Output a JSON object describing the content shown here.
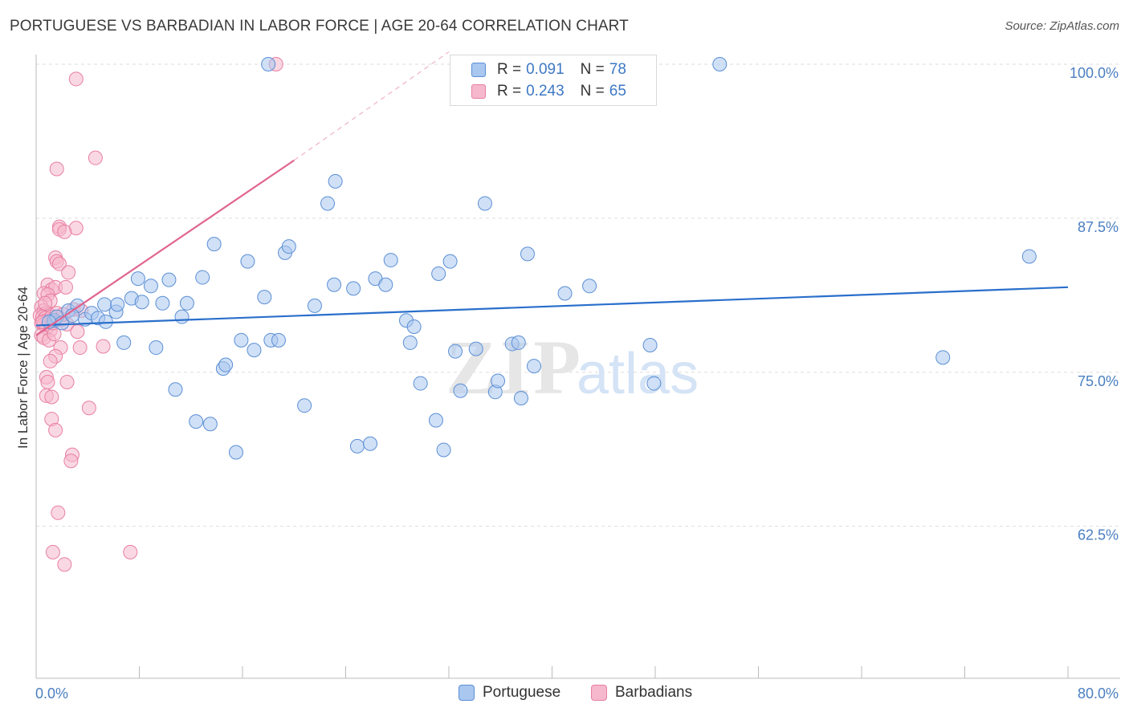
{
  "title": "PORTUGUESE VS BARBADIAN IN LABOR FORCE | AGE 20-64 CORRELATION CHART",
  "source": "Source: ZipAtlas.com",
  "watermark": {
    "zip": "ZIP",
    "atlas": "atlas"
  },
  "colors": {
    "blue_fill": "#a9c7ef",
    "blue_stroke": "#5b8fd6",
    "blue_line": "#2a6fcb",
    "pink_fill": "#f6b8cc",
    "pink_stroke": "#e87fa2",
    "pink_line": "#e0648f",
    "tick_text": "#4a7fc1",
    "grid": "#dddddd"
  },
  "legend": {
    "r_label": "R =",
    "n_label": "N =",
    "rows": [
      {
        "r": "0.091",
        "n": "78"
      },
      {
        "r": "0.243",
        "n": "65"
      }
    ]
  },
  "chart_data": {
    "type": "scatter",
    "title": "PORTUGUESE VS BARBADIAN IN LABOR FORCE | AGE 20-64 CORRELATION CHART",
    "xlabel": "",
    "ylabel": "In Labor Force | Age 20-64",
    "xlim": [
      0,
      80
    ],
    "ylim": [
      52.5,
      101.5
    ],
    "x_tick_labels": [
      {
        "value": 0,
        "label": "0.0%"
      },
      {
        "value": 80,
        "label": "80.0%"
      }
    ],
    "y_tick_labels": [
      {
        "value": 100,
        "label": "100.0%"
      },
      {
        "value": 87.5,
        "label": "87.5%"
      },
      {
        "value": 75,
        "label": "75.0%"
      },
      {
        "value": 62.5,
        "label": "62.5%"
      }
    ],
    "grid": "horizontal dashed",
    "legend_position": "top-center",
    "series": [
      {
        "name": "Portuguese",
        "color": "#5b8fd6",
        "trend": {
          "x": [
            0,
            80
          ],
          "y": [
            78.8,
            81.9
          ]
        },
        "points": [
          [
            1.4,
            79.2
          ],
          [
            1.6,
            79.5
          ],
          [
            2.0,
            79.0
          ],
          [
            2.5,
            80.0
          ],
          [
            3.2,
            80.4
          ],
          [
            3.8,
            79.3
          ],
          [
            4.3,
            79.8
          ],
          [
            4.8,
            79.4
          ],
          [
            5.4,
            79.1
          ],
          [
            5.3,
            80.5
          ],
          [
            6.2,
            79.9
          ],
          [
            6.3,
            80.5
          ],
          [
            6.8,
            77.4
          ],
          [
            7.4,
            81.0
          ],
          [
            7.9,
            82.6
          ],
          [
            8.2,
            80.7
          ],
          [
            8.9,
            82.0
          ],
          [
            9.3,
            77.0
          ],
          [
            9.8,
            80.6
          ],
          [
            10.3,
            82.5
          ],
          [
            10.8,
            73.6
          ],
          [
            11.3,
            79.5
          ],
          [
            11.7,
            80.6
          ],
          [
            12.4,
            71.0
          ],
          [
            12.9,
            82.7
          ],
          [
            13.5,
            70.8
          ],
          [
            13.8,
            85.4
          ],
          [
            14.5,
            75.3
          ],
          [
            14.7,
            75.6
          ],
          [
            15.5,
            68.5
          ],
          [
            15.9,
            77.6
          ],
          [
            16.4,
            84.0
          ],
          [
            16.9,
            76.8
          ],
          [
            17.7,
            81.1
          ],
          [
            18.2,
            77.6
          ],
          [
            18.8,
            77.6
          ],
          [
            19.3,
            84.7
          ],
          [
            19.6,
            85.2
          ],
          [
            20.8,
            72.3
          ],
          [
            21.6,
            80.4
          ],
          [
            22.6,
            88.7
          ],
          [
            23.2,
            90.5
          ],
          [
            23.1,
            82.1
          ],
          [
            24.6,
            81.8
          ],
          [
            24.9,
            69.0
          ],
          [
            25.9,
            69.2
          ],
          [
            26.3,
            82.6
          ],
          [
            27.1,
            82.1
          ],
          [
            27.5,
            84.1
          ],
          [
            28.7,
            79.2
          ],
          [
            29.0,
            77.4
          ],
          [
            29.3,
            78.7
          ],
          [
            29.8,
            74.1
          ],
          [
            31.0,
            71.1
          ],
          [
            31.2,
            83.0
          ],
          [
            31.6,
            68.7
          ],
          [
            32.1,
            84.0
          ],
          [
            32.5,
            76.7
          ],
          [
            32.9,
            73.5
          ],
          [
            34.1,
            76.9
          ],
          [
            34.8,
            88.7
          ],
          [
            35.6,
            73.4
          ],
          [
            35.8,
            74.3
          ],
          [
            36.9,
            77.3
          ],
          [
            37.4,
            77.4
          ],
          [
            37.6,
            72.9
          ],
          [
            38.1,
            84.6
          ],
          [
            38.6,
            75.5
          ],
          [
            41.0,
            81.4
          ],
          [
            42.9,
            82.0
          ],
          [
            47.6,
            77.2
          ],
          [
            47.9,
            74.1
          ],
          [
            53.0,
            100.0
          ],
          [
            70.3,
            76.2
          ],
          [
            77.0,
            84.4
          ],
          [
            18.0,
            100.0
          ],
          [
            1.0,
            79.1
          ],
          [
            2.8,
            79.6
          ]
        ]
      },
      {
        "name": "Barbadians",
        "color": "#e87fa2",
        "trend": {
          "x": [
            0,
            20
          ],
          "y": [
            78.0,
            92.2
          ]
        },
        "trend_dashed": {
          "x": [
            20,
            32
          ],
          "y": [
            92.2,
            101.0
          ]
        },
        "points": [
          [
            18.6,
            100.0
          ],
          [
            3.1,
            98.8
          ],
          [
            4.6,
            92.4
          ],
          [
            1.6,
            91.5
          ],
          [
            1.8,
            86.8
          ],
          [
            1.8,
            86.6
          ],
          [
            3.1,
            86.7
          ],
          [
            2.2,
            86.4
          ],
          [
            1.5,
            84.3
          ],
          [
            1.6,
            84.0
          ],
          [
            1.8,
            83.8
          ],
          [
            2.5,
            83.1
          ],
          [
            0.9,
            82.1
          ],
          [
            1.2,
            81.7
          ],
          [
            1.5,
            81.9
          ],
          [
            2.3,
            81.9
          ],
          [
            0.6,
            81.4
          ],
          [
            0.9,
            81.3
          ],
          [
            1.1,
            80.8
          ],
          [
            0.4,
            80.3
          ],
          [
            0.6,
            80.0
          ],
          [
            0.8,
            79.8
          ],
          [
            1.0,
            79.7
          ],
          [
            0.3,
            79.6
          ],
          [
            0.5,
            79.5
          ],
          [
            0.7,
            79.4
          ],
          [
            0.9,
            79.2
          ],
          [
            1.2,
            79.5
          ],
          [
            1.6,
            79.8
          ],
          [
            2.0,
            79.3
          ],
          [
            0.4,
            79.0
          ],
          [
            0.6,
            78.9
          ],
          [
            0.8,
            78.6
          ],
          [
            1.1,
            78.4
          ],
          [
            0.4,
            78.0
          ],
          [
            0.6,
            77.8
          ],
          [
            1.0,
            77.6
          ],
          [
            1.4,
            78.1
          ],
          [
            2.4,
            78.9
          ],
          [
            3.2,
            78.3
          ],
          [
            1.9,
            77.0
          ],
          [
            1.5,
            76.3
          ],
          [
            1.1,
            75.9
          ],
          [
            0.8,
            74.6
          ],
          [
            0.9,
            74.2
          ],
          [
            2.4,
            74.2
          ],
          [
            0.8,
            73.1
          ],
          [
            1.2,
            73.0
          ],
          [
            1.2,
            71.2
          ],
          [
            1.5,
            70.3
          ],
          [
            4.1,
            72.1
          ],
          [
            2.8,
            68.3
          ],
          [
            2.7,
            67.8
          ],
          [
            1.7,
            63.6
          ],
          [
            1.3,
            60.4
          ],
          [
            2.2,
            59.4
          ],
          [
            7.3,
            60.4
          ],
          [
            3.4,
            77.0
          ],
          [
            5.2,
            77.1
          ],
          [
            2.9,
            80.1
          ],
          [
            0.5,
            79.1
          ],
          [
            0.7,
            80.6
          ],
          [
            1.3,
            79.0
          ],
          [
            3.5,
            80.0
          ],
          [
            2.1,
            79.7
          ]
        ]
      }
    ]
  },
  "bottom_legend": [
    {
      "label": "Portuguese"
    },
    {
      "label": "Barbadians"
    }
  ]
}
